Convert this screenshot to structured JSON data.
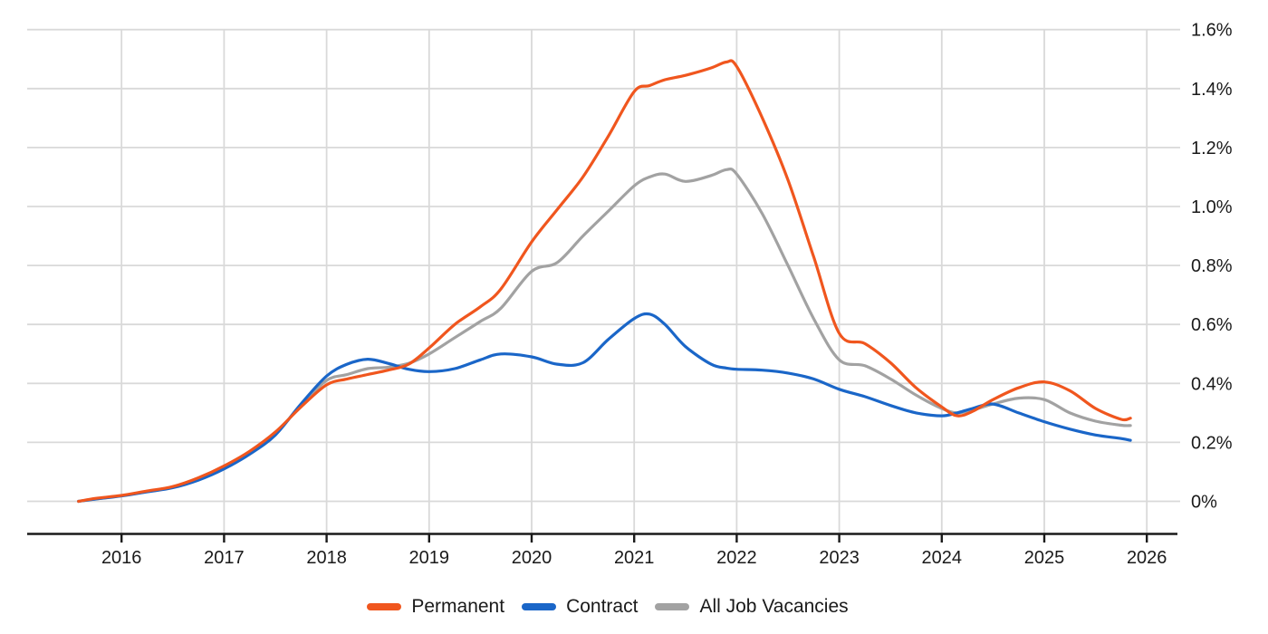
{
  "chart_data": {
    "type": "line",
    "title": "",
    "grid": true,
    "legend_position": "bottom",
    "x_axis": {
      "ticks": [
        2016,
        2017,
        2018,
        2019,
        2020,
        2021,
        2022,
        2023,
        2024,
        2025,
        2026
      ],
      "tick_labels": [
        "2016",
        "2017",
        "2018",
        "2019",
        "2020",
        "2021",
        "2022",
        "2023",
        "2024",
        "2025",
        "2026"
      ]
    },
    "y_axis": {
      "side": "right",
      "unit": "%",
      "range": [
        0,
        1.6
      ],
      "tick_values": [
        0,
        0.2,
        0.4,
        0.6,
        0.8,
        1.0,
        1.2,
        1.4,
        1.6
      ],
      "tick_labels": [
        "0%",
        "0.2%",
        "0.4%",
        "0.6%",
        "0.8%",
        "1.0%",
        "1.2%",
        "1.4%",
        "1.6%"
      ]
    },
    "x": [
      2015.58,
      2015.75,
      2016,
      2016.25,
      2016.5,
      2016.75,
      2017,
      2017.25,
      2017.5,
      2017.75,
      2018,
      2018.2,
      2018.4,
      2018.6,
      2018.8,
      2019,
      2019.25,
      2019.5,
      2019.7,
      2020,
      2020.25,
      2020.5,
      2020.75,
      2021,
      2021.15,
      2021.3,
      2021.5,
      2021.75,
      2021.9,
      2022,
      2022.25,
      2022.5,
      2022.75,
      2023,
      2023.25,
      2023.5,
      2023.75,
      2024,
      2024.15,
      2024.3,
      2024.5,
      2024.75,
      2025,
      2025.25,
      2025.5,
      2025.75,
      2025.84
    ],
    "series": [
      {
        "name": "Permanent",
        "color": "#F0561E",
        "values": [
          0,
          0.01,
          0.02,
          0.035,
          0.05,
          0.08,
          0.12,
          0.17,
          0.235,
          0.32,
          0.395,
          0.415,
          0.43,
          0.445,
          0.465,
          0.52,
          0.6,
          0.66,
          0.72,
          0.88,
          0.99,
          1.1,
          1.24,
          1.39,
          1.41,
          1.43,
          1.445,
          1.47,
          1.49,
          1.475,
          1.3,
          1.09,
          0.83,
          0.57,
          0.535,
          0.47,
          0.385,
          0.32,
          0.29,
          0.305,
          0.345,
          0.385,
          0.405,
          0.375,
          0.315,
          0.278,
          0.282
        ]
      },
      {
        "name": "Contract",
        "color": "#1A66C8",
        "values": [
          0,
          0.008,
          0.018,
          0.032,
          0.046,
          0.072,
          0.11,
          0.16,
          0.225,
          0.33,
          0.425,
          0.465,
          0.482,
          0.468,
          0.448,
          0.44,
          0.45,
          0.48,
          0.5,
          0.49,
          0.465,
          0.47,
          0.55,
          0.62,
          0.635,
          0.6,
          0.525,
          0.465,
          0.452,
          0.448,
          0.445,
          0.435,
          0.415,
          0.38,
          0.355,
          0.325,
          0.3,
          0.29,
          0.3,
          0.315,
          0.33,
          0.3,
          0.27,
          0.245,
          0.225,
          0.213,
          0.207
        ]
      },
      {
        "name": "All Job Vacancies",
        "color": "#A2A2A2",
        "values": [
          0,
          0.008,
          0.019,
          0.033,
          0.048,
          0.076,
          0.115,
          0.165,
          0.23,
          0.325,
          0.41,
          0.43,
          0.45,
          0.455,
          0.468,
          0.5,
          0.555,
          0.61,
          0.655,
          0.78,
          0.81,
          0.9,
          0.985,
          1.07,
          1.1,
          1.11,
          1.085,
          1.105,
          1.125,
          1.11,
          0.975,
          0.8,
          0.62,
          0.48,
          0.46,
          0.415,
          0.36,
          0.315,
          0.3,
          0.31,
          0.33,
          0.35,
          0.345,
          0.3,
          0.272,
          0.258,
          0.257
        ]
      }
    ]
  },
  "legend": {
    "items": [
      {
        "label": "Permanent",
        "color": "#F0561E"
      },
      {
        "label": "Contract",
        "color": "#1A66C8"
      },
      {
        "label": "All Job Vacancies",
        "color": "#A2A2A2"
      }
    ]
  },
  "colors": {
    "background": "#ffffff",
    "gridline": "#D9D9D9",
    "axis_line": "#1A1A1A",
    "tick_text": "#1A1A1A"
  }
}
